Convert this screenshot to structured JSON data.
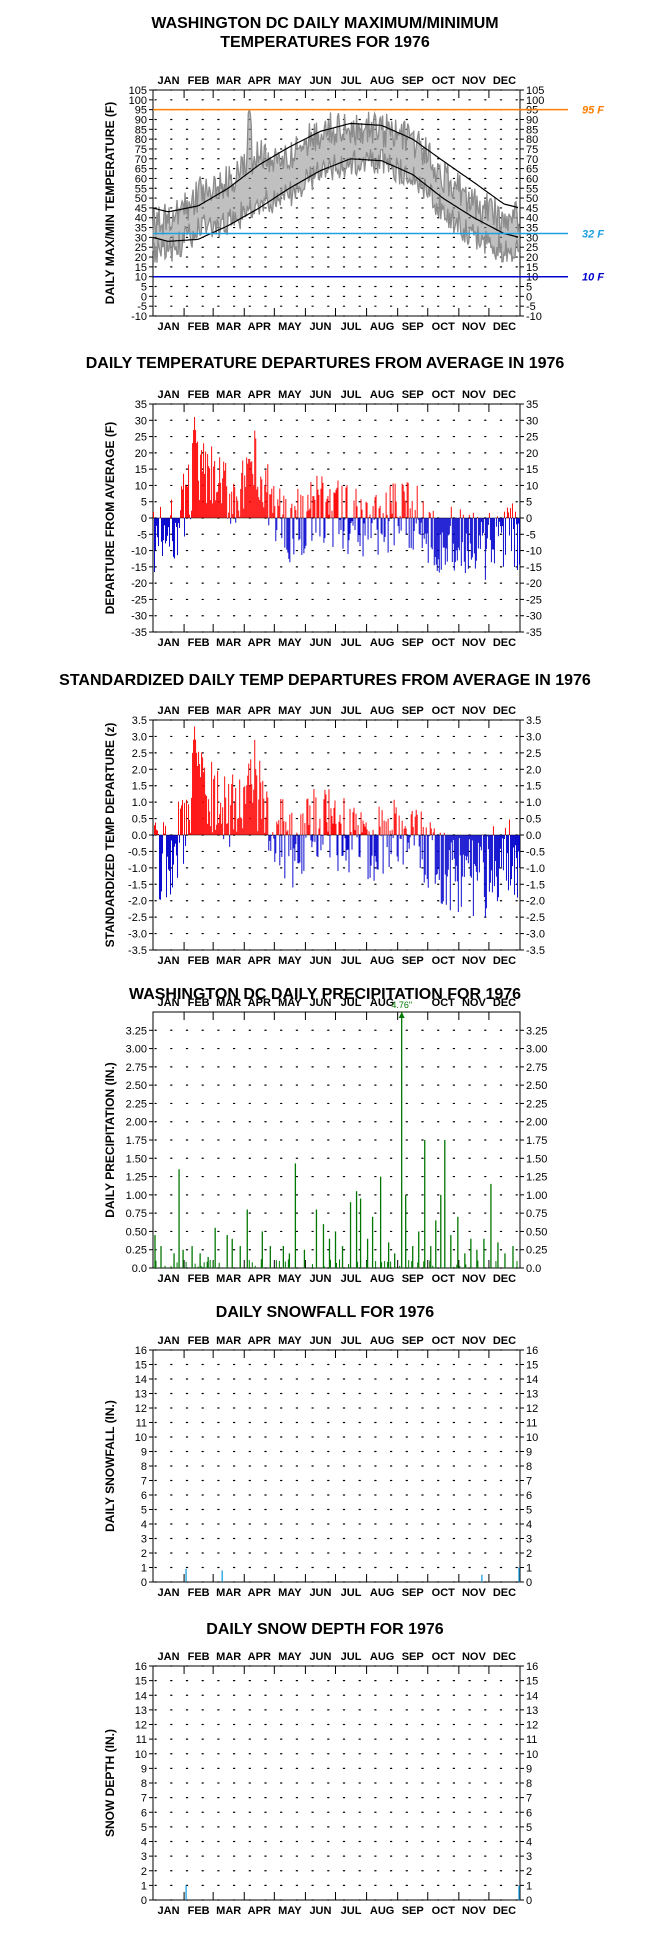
{
  "months": [
    "JAN",
    "FEB",
    "MAR",
    "APR",
    "MAY",
    "JUN",
    "JUL",
    "AUG",
    "SEP",
    "OCT",
    "NOV",
    "DEC"
  ],
  "chart_data": [
    {
      "id": "temps",
      "type": "line",
      "title_lines": [
        "WASHINGTON DC DAILY MAXIMUM/MINIMUM",
        "TEMPERATURES FOR 1976"
      ],
      "ylabel": "DAILY MAX/MIN TEMPERATURE (F)",
      "ylim": [
        -10,
        105
      ],
      "yticks": [
        -10,
        -5,
        0,
        5,
        10,
        15,
        20,
        25,
        30,
        35,
        40,
        45,
        50,
        55,
        60,
        65,
        70,
        75,
        80,
        85,
        90,
        95,
        100,
        105
      ],
      "reference_lines": [
        {
          "value": 95,
          "label": "95 F",
          "color": "#ff7f00"
        },
        {
          "value": 32,
          "label": "32 F",
          "color": "#1e9fe0"
        },
        {
          "value": 10,
          "label": "10 F",
          "color": "#0000cc"
        }
      ],
      "normal_high_monthly": [
        43,
        46,
        55,
        67,
        76,
        84,
        88,
        87,
        80,
        69,
        58,
        47
      ],
      "normal_low_monthly": [
        28,
        29,
        36,
        45,
        55,
        64,
        70,
        69,
        62,
        50,
        40,
        32
      ],
      "daily_max_monthly_approx": [
        38,
        52,
        58,
        72,
        72,
        84,
        86,
        85,
        80,
        62,
        48,
        40
      ],
      "daily_min_monthly_approx": [
        22,
        34,
        38,
        46,
        52,
        64,
        68,
        68,
        60,
        44,
        30,
        24
      ],
      "peak_max": 95,
      "grid": "dotted",
      "series_colors": {
        "observed": "#8c8c8c",
        "normals": "#000000"
      }
    },
    {
      "id": "departures",
      "type": "bar",
      "title": "DAILY TEMPERATURE DEPARTURES FROM AVERAGE IN 1976",
      "ylabel": "DEPARTURE FROM AVERAGE (F)",
      "ylim": [
        -35,
        35
      ],
      "yticks": [
        -35,
        -30,
        -25,
        -20,
        -15,
        -10,
        -5,
        0,
        5,
        10,
        15,
        20,
        25,
        30,
        35
      ],
      "monthly_departure_approx": [
        -7,
        14,
        7,
        9,
        -3,
        3,
        -1,
        -1,
        1,
        -7,
        -9,
        -6
      ],
      "max_departure": 31,
      "min_departure": -19,
      "colors": {
        "positive": "#ff0000",
        "negative": "#0000cc"
      },
      "grid": "dotted"
    },
    {
      "id": "standardized",
      "type": "bar",
      "title": "STANDARDIZED DAILY TEMP DEPARTURES FROM AVERAGE IN 1976",
      "ylabel": "STANDARDIZED TEMP DEPARTURE (z)",
      "ylim": [
        -3.5,
        3.5
      ],
      "yticks": [
        -3.5,
        -3.0,
        -2.5,
        -2.0,
        -1.5,
        -1.0,
        -0.5,
        0.0,
        0.5,
        1.0,
        1.5,
        2.0,
        2.5,
        3.0,
        3.5
      ],
      "monthly_departure_approx": [
        -0.8,
        1.4,
        0.8,
        1.2,
        -0.5,
        0.5,
        -0.2,
        -0.2,
        0.2,
        -1.1,
        -1.3,
        -0.7
      ],
      "max_departure": 3.3,
      "min_departure": -2.5,
      "colors": {
        "positive": "#ff0000",
        "negative": "#0000cc"
      },
      "grid": "dotted"
    },
    {
      "id": "precip",
      "type": "bar",
      "title": "WASHINGTON DC DAILY PRECIPITATION FOR 1976",
      "ylabel": "DAILY PRECIPITATION (IN.)",
      "ylim": [
        0,
        3.5
      ],
      "yticks": [
        0.0,
        0.25,
        0.5,
        0.75,
        1.0,
        1.25,
        1.5,
        1.75,
        2.0,
        2.25,
        2.5,
        2.75,
        3.0,
        3.25
      ],
      "max_label": "4.76\"",
      "events": [
        {
          "day": 3,
          "value": 0.45
        },
        {
          "day": 9,
          "value": 0.3
        },
        {
          "day": 22,
          "value": 0.2
        },
        {
          "day": 27,
          "value": 1.35
        },
        {
          "day": 31,
          "value": 0.25
        },
        {
          "day": 40,
          "value": 0.3
        },
        {
          "day": 48,
          "value": 0.2
        },
        {
          "day": 56,
          "value": 0.15
        },
        {
          "day": 63,
          "value": 0.55
        },
        {
          "day": 75,
          "value": 0.45
        },
        {
          "day": 80,
          "value": 0.4
        },
        {
          "day": 88,
          "value": 0.3
        },
        {
          "day": 95,
          "value": 0.8
        },
        {
          "day": 110,
          "value": 0.5
        },
        {
          "day": 118,
          "value": 0.3
        },
        {
          "day": 131,
          "value": 0.3
        },
        {
          "day": 137,
          "value": 0.2
        },
        {
          "day": 143,
          "value": 1.43
        },
        {
          "day": 152,
          "value": 0.25
        },
        {
          "day": 164,
          "value": 0.8
        },
        {
          "day": 171,
          "value": 0.6
        },
        {
          "day": 177,
          "value": 0.4
        },
        {
          "day": 183,
          "value": 0.5
        },
        {
          "day": 190,
          "value": 0.3
        },
        {
          "day": 198,
          "value": 0.9
        },
        {
          "day": 204,
          "value": 1.05
        },
        {
          "day": 208,
          "value": 0.95
        },
        {
          "day": 215,
          "value": 0.4
        },
        {
          "day": 220,
          "value": 0.7
        },
        {
          "day": 228,
          "value": 1.25
        },
        {
          "day": 236,
          "value": 0.35
        },
        {
          "day": 242,
          "value": 0.2
        },
        {
          "day": 249,
          "value": 4.76
        },
        {
          "day": 253,
          "value": 1.0
        },
        {
          "day": 260,
          "value": 0.3
        },
        {
          "day": 266,
          "value": 0.5
        },
        {
          "day": 272,
          "value": 1.75
        },
        {
          "day": 278,
          "value": 0.3
        },
        {
          "day": 283,
          "value": 0.65
        },
        {
          "day": 288,
          "value": 1.0
        },
        {
          "day": 292,
          "value": 1.75
        },
        {
          "day": 298,
          "value": 0.45
        },
        {
          "day": 305,
          "value": 0.7
        },
        {
          "day": 312,
          "value": 0.2
        },
        {
          "day": 318,
          "value": 0.4
        },
        {
          "day": 324,
          "value": 0.25
        },
        {
          "day": 331,
          "value": 0.4
        },
        {
          "day": 338,
          "value": 1.15
        },
        {
          "day": 345,
          "value": 0.35
        },
        {
          "day": 352,
          "value": 0.2
        },
        {
          "day": 360,
          "value": 0.3
        }
      ],
      "color": "#007700",
      "grid": "dotted"
    },
    {
      "id": "snowfall",
      "type": "bar",
      "title": "DAILY SNOWFALL FOR 1976",
      "ylabel": "DAILY SNOWFALL (IN.)",
      "ylim": [
        0,
        16
      ],
      "yticks": [
        0,
        1,
        2,
        3,
        4,
        5,
        6,
        7,
        8,
        9,
        10,
        11,
        12,
        13,
        14,
        15,
        16
      ],
      "events": [
        {
          "day": 34,
          "value": 0.9
        },
        {
          "day": 70,
          "value": 0.8
        },
        {
          "day": 329,
          "value": 0.5
        },
        {
          "day": 366,
          "value": 1.0
        }
      ],
      "color": "#1e9fe0",
      "grid": "dotted"
    },
    {
      "id": "snowdepth",
      "type": "bar",
      "title": "DAILY SNOW DEPTH FOR 1976",
      "ylabel": "SNOW DEPTH (IN.)",
      "ylim": [
        0,
        16
      ],
      "yticks": [
        0,
        1,
        2,
        3,
        4,
        5,
        6,
        7,
        8,
        9,
        10,
        11,
        12,
        13,
        14,
        15,
        16
      ],
      "events": [
        {
          "day": 34,
          "value": 1.0
        },
        {
          "day": 366,
          "value": 1.0
        }
      ],
      "color": "#1e9fe0",
      "grid": "dotted"
    }
  ]
}
